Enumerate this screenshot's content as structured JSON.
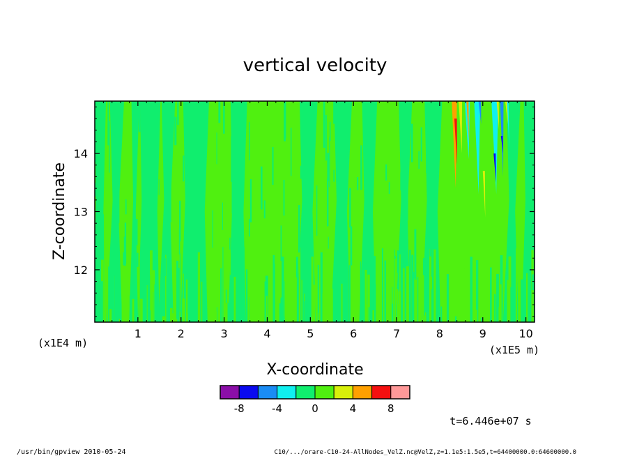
{
  "chart_data": {
    "type": "heatmap",
    "title": "vertical velocity",
    "xlabel": "X-coordinate",
    "ylabel": "Z-coordinate",
    "x_unit": "(x1E5 m)",
    "y_unit": "(x1E4 m)",
    "xlim": [
      0.0,
      10.2
    ],
    "ylim": [
      11.1,
      14.9
    ],
    "x_ticks": [
      "1",
      "2",
      "3",
      "4",
      "5",
      "6",
      "7",
      "8",
      "9",
      "10"
    ],
    "y_ticks": [
      "12",
      "13",
      "14"
    ],
    "colorbar": {
      "levels": [
        -10,
        -8,
        -6,
        -4,
        -2,
        0,
        2,
        4,
        6,
        8,
        10
      ],
      "colors": [
        "#8B0EA8",
        "#0A0AF0",
        "#1A8CF5",
        "#10F0F0",
        "#10EE6E",
        "#50F010",
        "#D8F00A",
        "#FFA000",
        "#F51010",
        "#FF9898"
      ],
      "tick_labels": [
        "-8",
        "-4",
        "0",
        "4",
        "8"
      ]
    },
    "field_description_levels": {
      "background": [
        -2,
        2
      ],
      "dominant_bins": [
        "0 to 2",
        "-2 to 0"
      ],
      "extreme_region": "x 8.2–9.6, z 13.2–14.9, values -8 to 8"
    }
  },
  "annotations": {
    "time": "t=6.446e+07 s",
    "footer_left": "/usr/bin/gpview   2010-05-24",
    "footer_right": "C10/.../orare-C10-24-AllNodes_VelZ.nc@VelZ,z=1.1e5:1.5e5,t=64400000.0:64600000.0"
  }
}
